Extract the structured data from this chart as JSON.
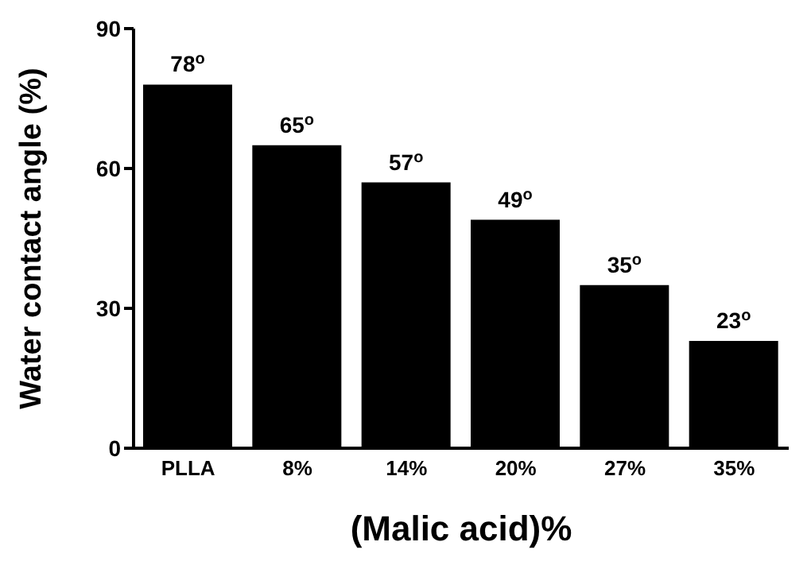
{
  "chart_data": {
    "type": "bar",
    "xlabel": "(Malic acid)%",
    "ylabel": "Water contact angle (%)",
    "categories": [
      "PLLA",
      "8%",
      "14%",
      "20%",
      "27%",
      "35%"
    ],
    "values": [
      78,
      65,
      57,
      49,
      35,
      23
    ],
    "value_labels": [
      "78$^{o}$",
      "65$^{o}$",
      "57$^{o}$",
      "49$^{o}$",
      "35$^{o}$",
      "23$^{o}$"
    ],
    "color": "#000000",
    "ylim": [
      0,
      90
    ],
    "yticks": [
      0,
      30,
      60,
      90
    ],
    "grid": false
  }
}
